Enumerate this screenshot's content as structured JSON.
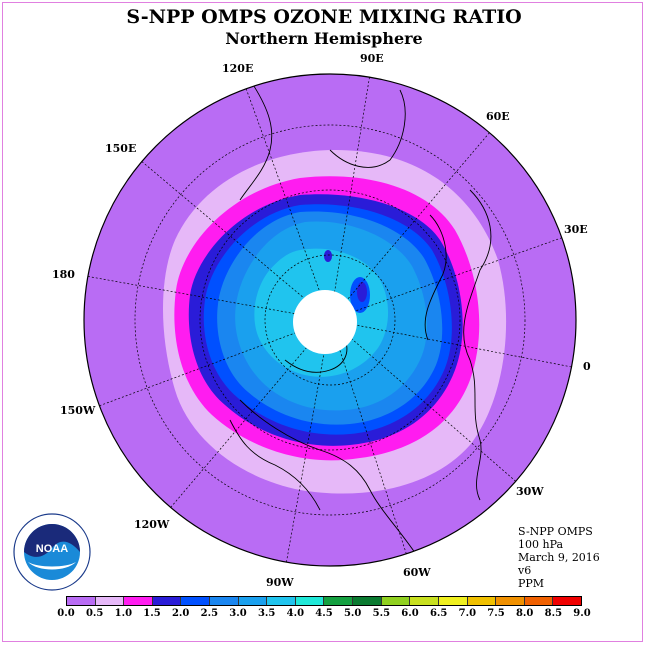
{
  "title": "S-NPP OMPS OZONE MIXING RATIO",
  "subtitle": "Northern Hemisphere",
  "longitude_labels": [
    "90E",
    "60E",
    "30E",
    "0",
    "30W",
    "60W",
    "90W",
    "120W",
    "150W",
    "180",
    "150E",
    "120E"
  ],
  "info": {
    "instrument": "S-NPP OMPS",
    "level": "100 hPa",
    "date": "March 9, 2016",
    "version": "v6",
    "units": "PPM"
  },
  "logo_text": "NOAA",
  "logo_ring_text": "NATIONAL OCEANIC AND ATMOSPHERIC ADMINISTRATION U.S. DEPARTMENT OF COMMERCE",
  "colorbar": {
    "ticks": [
      "0.0",
      "0.5",
      "1.0",
      "1.5",
      "2.0",
      "2.5",
      "3.0",
      "3.5",
      "4.0",
      "4.5",
      "5.0",
      "5.5",
      "6.0",
      "6.5",
      "7.0",
      "7.5",
      "8.0",
      "8.5",
      "9.0"
    ],
    "colors": [
      "#b96cf4",
      "#e6b8f8",
      "#ff1cf0",
      "#2a1cd8",
      "#0050ff",
      "#1a86f0",
      "#1aa0ee",
      "#20c4ee",
      "#20e8d8",
      "#14a040",
      "#0a7a30",
      "#90d020",
      "#c8e020",
      "#f0f020",
      "#f0c000",
      "#f09000",
      "#f06000",
      "#f00000",
      "#8a5030"
    ]
  },
  "map_data": {
    "projection": "north polar stereographic",
    "field": "ozone mixing ratio (ppm) at 100 hPa",
    "contour_levels": [
      0.0,
      0.5,
      1.0,
      1.5,
      2.0,
      2.5,
      3.0,
      3.5
    ]
  }
}
